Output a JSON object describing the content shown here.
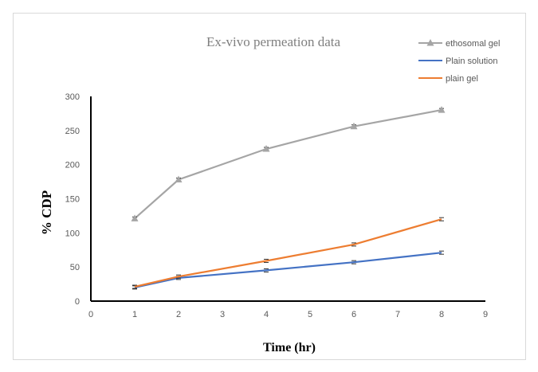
{
  "chart_data": {
    "type": "line",
    "title": "Ex-vivo permeation data",
    "xlabel": "Time (hr)",
    "ylabel": "% CDP",
    "xlim": [
      0,
      9
    ],
    "ylim": [
      0,
      300
    ],
    "xticks": [
      0,
      1,
      2,
      3,
      4,
      5,
      6,
      7,
      8,
      9
    ],
    "yticks": [
      0,
      50,
      100,
      150,
      200,
      250,
      300
    ],
    "grid": false,
    "legend_position": "top-right",
    "x": [
      1,
      2,
      4,
      6,
      8
    ],
    "series": [
      {
        "name": "ethosomal gel",
        "values": [
          121,
          178,
          223,
          256,
          280
        ],
        "color": "#a5a5a5",
        "marker": "triangle"
      },
      {
        "name": "Plain solution",
        "values": [
          20,
          34,
          45,
          57,
          71
        ],
        "color": "#4472c4",
        "marker": "none"
      },
      {
        "name": "plain gel",
        "values": [
          21,
          36,
          59,
          83,
          120
        ],
        "color": "#ed7d31",
        "marker": "none"
      }
    ]
  }
}
